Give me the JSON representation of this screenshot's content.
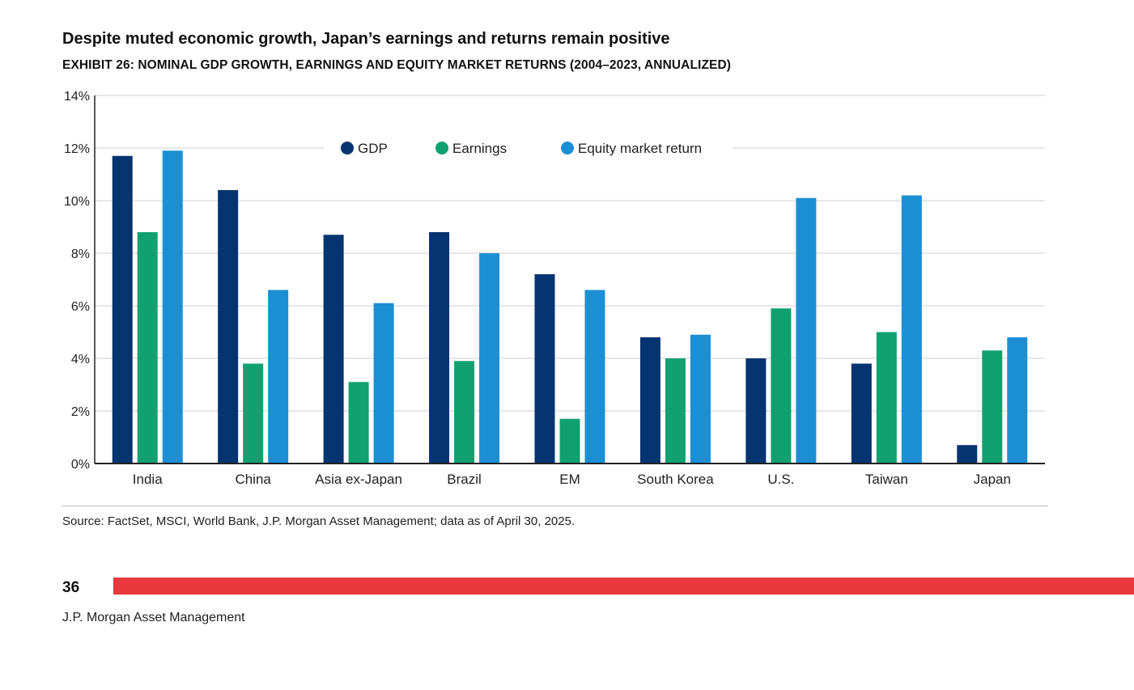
{
  "page": {
    "title": "Despite muted economic growth, Japan’s earnings and returns remain positive",
    "subtitle": "EXHIBIT 26: NOMINAL GDP GROWTH, EARNINGS AND EQUITY MARKET RETURNS (2004–2023, ANNUALIZED)",
    "source": "Source: FactSet, MSCI, World Bank, J.P. Morgan Asset Management; data as of April 30, 2025.",
    "page_number": "36",
    "footer": "J.P. Morgan Asset Management",
    "accent_color": "#e8393f"
  },
  "chart_data": {
    "type": "bar",
    "categories": [
      "India",
      "China",
      "Asia ex-Japan",
      "Brazil",
      "EM",
      "South Korea",
      "U.S.",
      "Taiwan",
      "Japan"
    ],
    "series": [
      {
        "name": "GDP",
        "color": "#063470",
        "values": [
          11.7,
          10.4,
          8.7,
          8.8,
          7.2,
          4.8,
          4.0,
          3.8,
          0.7
        ]
      },
      {
        "name": "Earnings",
        "color": "#12a070",
        "values": [
          8.8,
          3.8,
          3.1,
          3.9,
          1.7,
          4.0,
          5.9,
          5.0,
          4.3
        ]
      },
      {
        "name": "Equity market return",
        "color": "#1c8fd3",
        "values": [
          11.9,
          6.6,
          6.1,
          8.0,
          6.6,
          4.9,
          10.1,
          10.2,
          4.8
        ]
      }
    ],
    "ylim": [
      0,
      14
    ],
    "yticks": [
      "0%",
      "2%",
      "4%",
      "6%",
      "8%",
      "10%",
      "12%",
      "14%"
    ],
    "grid": true,
    "legend": "top"
  }
}
